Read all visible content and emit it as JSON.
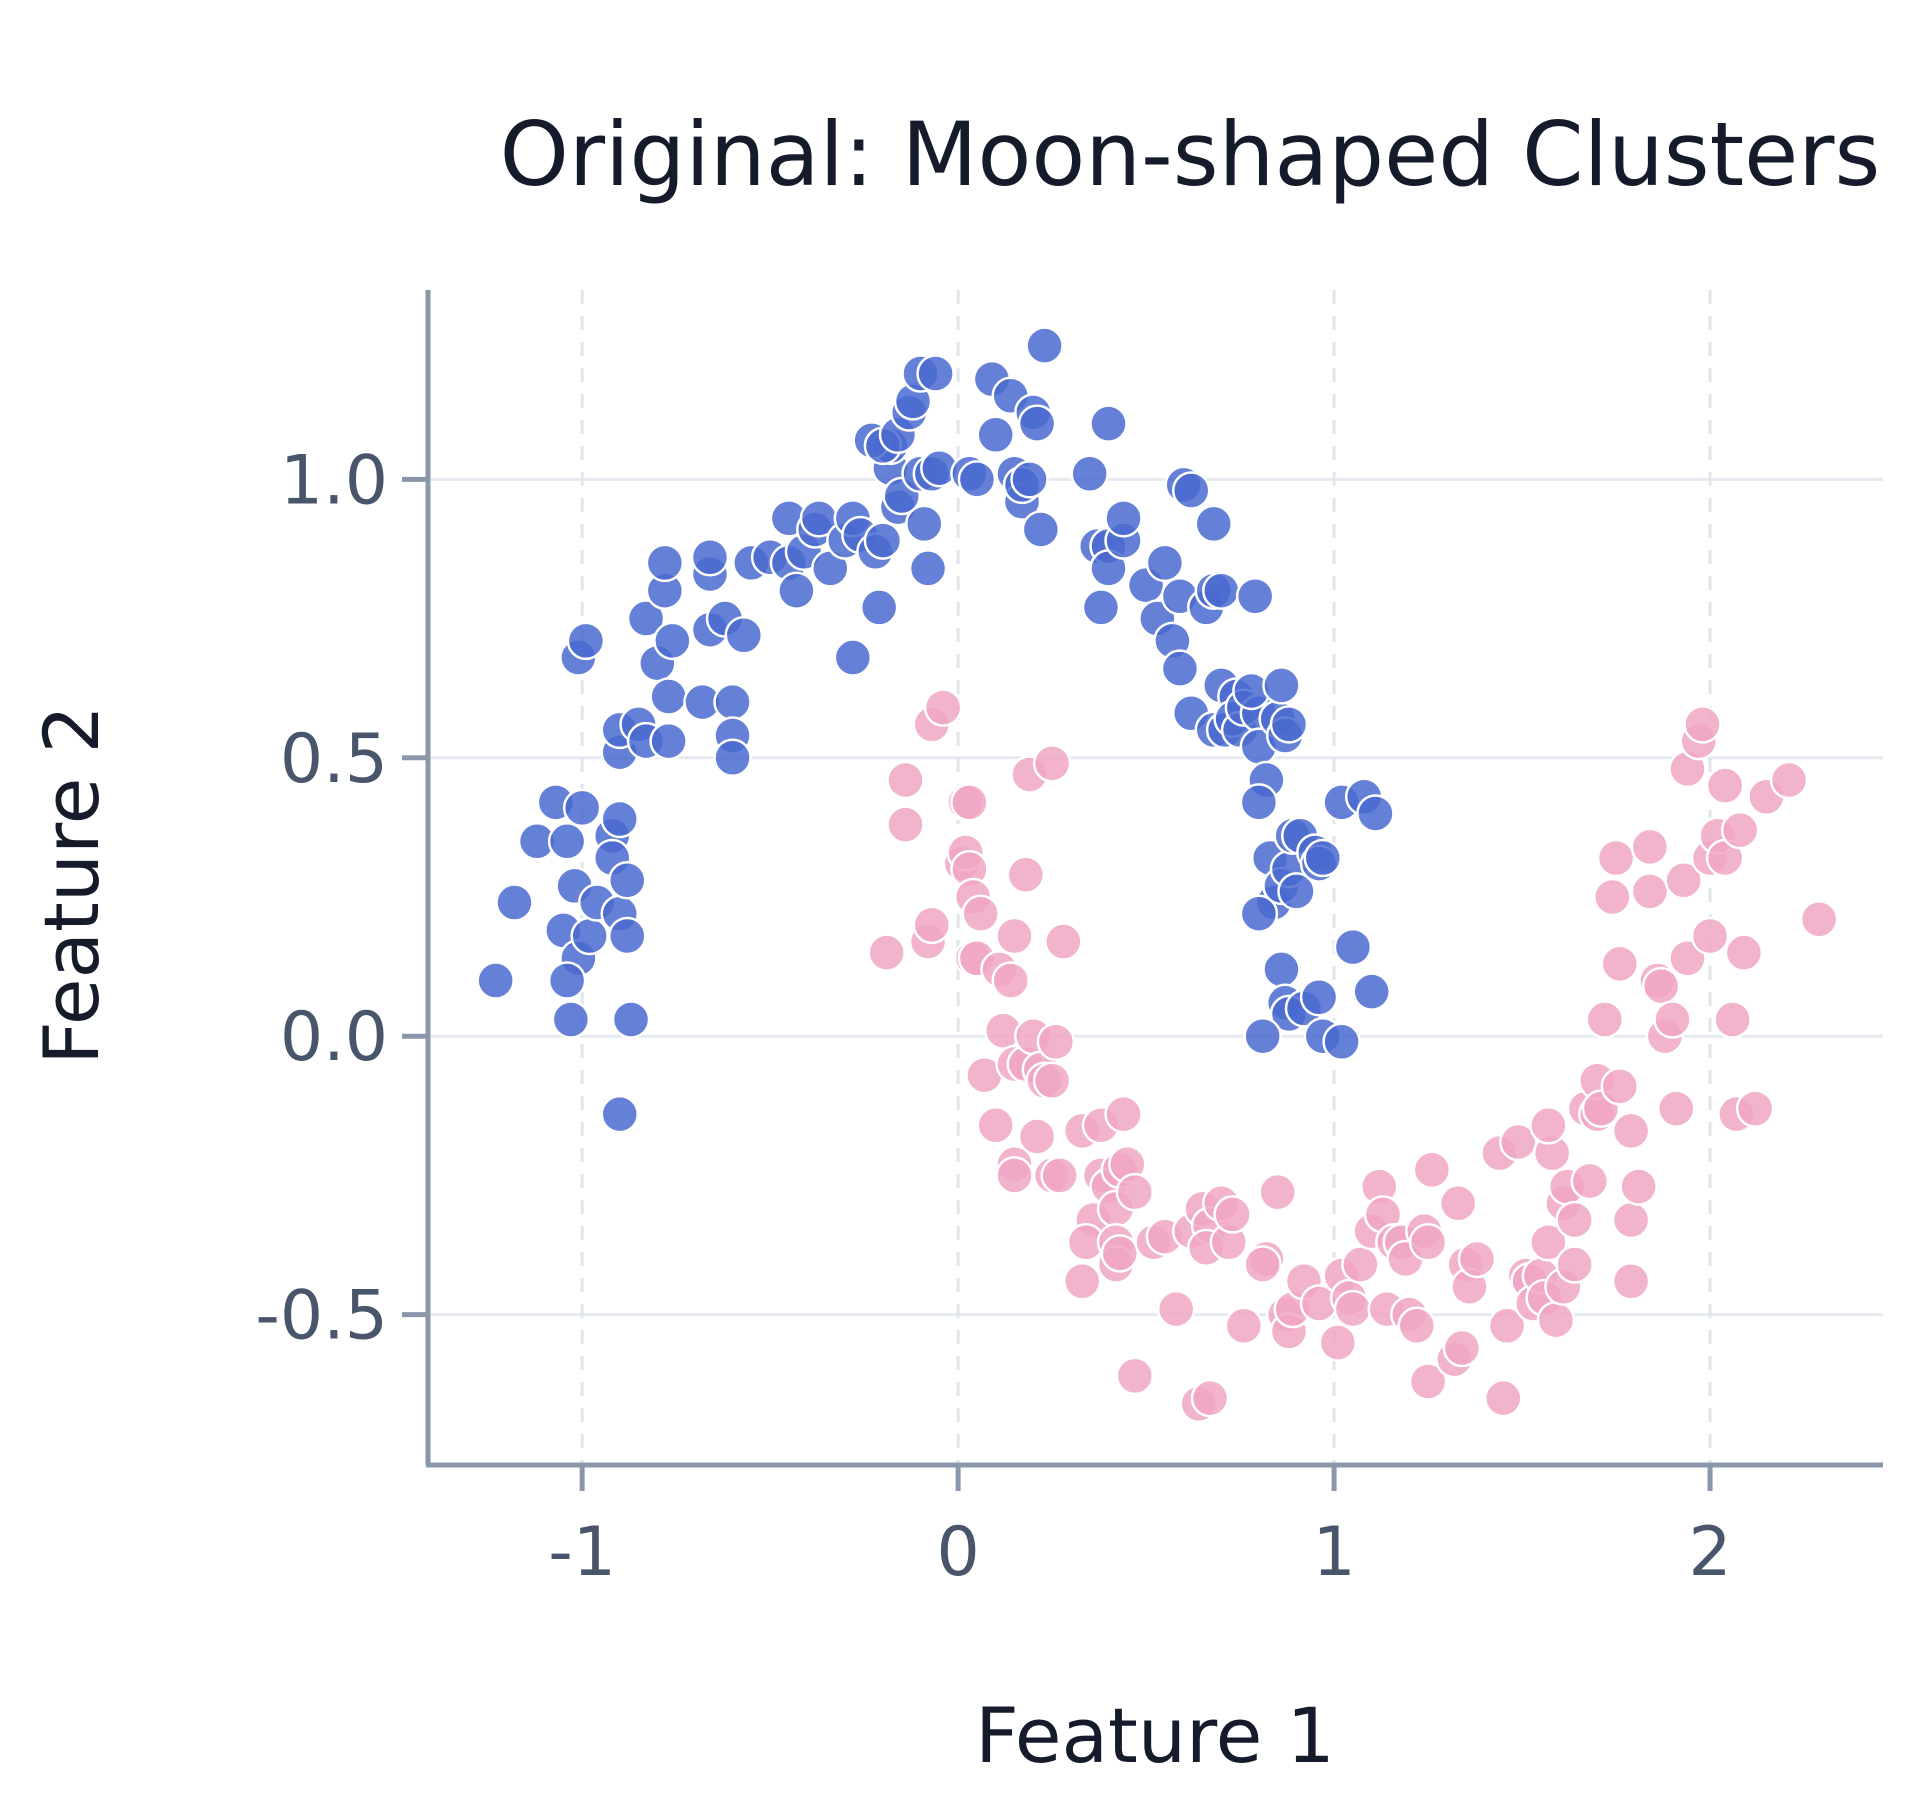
{
  "chart_data": {
    "type": "scatter",
    "title": "Original: Moon-shaped Clusters",
    "xlabel": "Feature 1",
    "ylabel": "Feature 2",
    "xlim": [
      -1.41,
      2.46
    ],
    "ylim": [
      -0.77,
      1.34
    ],
    "xticks": [
      -1,
      0,
      1,
      2
    ],
    "xtick_labels": [
      "-1",
      "0",
      "1",
      "2"
    ],
    "yticks": [
      -0.5,
      0.0,
      0.5,
      1.0
    ],
    "ytick_labels": [
      "-0.5",
      "0.0",
      "0.5",
      "1.0"
    ],
    "grid": true,
    "legend": "none",
    "series": [
      {
        "color": "#4a6ad0",
        "points": [
          [
            -1.23,
            0.1
          ],
          [
            -1.18,
            0.24
          ],
          [
            -1.12,
            0.35
          ],
          [
            -1.07,
            0.42
          ],
          [
            -1.04,
            0.35
          ],
          [
            -1.02,
            0.27
          ],
          [
            -1.05,
            0.19
          ],
          [
            -1.01,
            0.14
          ],
          [
            -0.98,
            0.18
          ],
          [
            -1.0,
            0.41
          ],
          [
            -1.04,
            0.1
          ],
          [
            -1.03,
            0.03
          ],
          [
            -0.96,
            0.24
          ],
          [
            -0.92,
            0.36
          ],
          [
            -0.92,
            0.32
          ],
          [
            -0.9,
            0.39
          ],
          [
            -0.9,
            0.22
          ],
          [
            -0.88,
            0.28
          ],
          [
            -0.88,
            0.18
          ],
          [
            -0.87,
            0.03
          ],
          [
            -0.9,
            -0.14
          ],
          [
            -1.01,
            0.68
          ],
          [
            -0.99,
            0.71
          ],
          [
            -0.9,
            0.51
          ],
          [
            -0.9,
            0.55
          ],
          [
            -0.85,
            0.56
          ],
          [
            -0.83,
            0.53
          ],
          [
            -0.77,
            0.53
          ],
          [
            -0.8,
            0.67
          ],
          [
            -0.77,
            0.61
          ],
          [
            -0.83,
            0.75
          ],
          [
            -0.76,
            0.71
          ],
          [
            -0.78,
            0.8
          ],
          [
            -0.78,
            0.85
          ],
          [
            -0.68,
            0.6
          ],
          [
            -0.66,
            0.73
          ],
          [
            -0.66,
            0.83
          ],
          [
            -0.66,
            0.86
          ],
          [
            -0.62,
            0.75
          ],
          [
            -0.57,
            0.72
          ],
          [
            -0.6,
            0.6
          ],
          [
            -0.6,
            0.54
          ],
          [
            -0.6,
            0.5
          ],
          [
            -0.55,
            0.85
          ],
          [
            -0.5,
            0.86
          ],
          [
            -0.45,
            0.85
          ],
          [
            -0.45,
            0.93
          ],
          [
            -0.43,
            0.8
          ],
          [
            -0.41,
            0.87
          ],
          [
            -0.38,
            0.91
          ],
          [
            -0.37,
            0.93
          ],
          [
            -0.34,
            0.84
          ],
          [
            -0.3,
            0.89
          ],
          [
            -0.28,
            0.93
          ],
          [
            -0.28,
            0.68
          ],
          [
            -0.26,
            0.9
          ],
          [
            -0.22,
            0.87
          ],
          [
            -0.21,
            0.77
          ],
          [
            -0.2,
            0.89
          ],
          [
            -0.18,
            1.02
          ],
          [
            -0.18,
            1.06
          ],
          [
            -0.16,
            0.95
          ],
          [
            -0.15,
            0.97
          ],
          [
            -0.23,
            1.07
          ],
          [
            -0.2,
            1.06
          ],
          [
            -0.16,
            1.08
          ],
          [
            -0.13,
            1.12
          ],
          [
            -0.12,
            1.14
          ],
          [
            -0.1,
            1.19
          ],
          [
            -0.06,
            1.19
          ],
          [
            -0.1,
            1.01
          ],
          [
            -0.07,
            1.01
          ],
          [
            -0.05,
            1.02
          ],
          [
            -0.09,
            0.92
          ],
          [
            -0.08,
            0.84
          ],
          [
            0.03,
            1.01
          ],
          [
            0.05,
            1.0
          ],
          [
            0.09,
            1.18
          ],
          [
            0.1,
            1.08
          ],
          [
            0.14,
            1.15
          ],
          [
            0.15,
            1.01
          ],
          [
            0.17,
            0.96
          ],
          [
            0.17,
            0.99
          ],
          [
            0.19,
            1.0
          ],
          [
            0.2,
            1.12
          ],
          [
            0.21,
            1.1
          ],
          [
            0.22,
            0.91
          ],
          [
            0.23,
            1.24
          ],
          [
            0.35,
            1.01
          ],
          [
            0.37,
            0.88
          ],
          [
            0.4,
            0.88
          ],
          [
            0.38,
            0.77
          ],
          [
            0.4,
            0.84
          ],
          [
            0.44,
            0.89
          ],
          [
            0.44,
            0.93
          ],
          [
            0.4,
            1.1
          ],
          [
            0.5,
            0.81
          ],
          [
            0.55,
            0.85
          ],
          [
            0.53,
            0.75
          ],
          [
            0.57,
            0.71
          ],
          [
            0.59,
            0.79
          ],
          [
            0.59,
            0.66
          ],
          [
            0.6,
            0.99
          ],
          [
            0.62,
            0.98
          ],
          [
            0.68,
            0.92
          ],
          [
            0.66,
            0.77
          ],
          [
            0.68,
            0.8
          ],
          [
            0.7,
            0.8
          ],
          [
            0.7,
            0.63
          ],
          [
            0.74,
            0.61
          ],
          [
            0.79,
            0.79
          ],
          [
            0.62,
            0.58
          ],
          [
            0.68,
            0.55
          ],
          [
            0.71,
            0.55
          ],
          [
            0.73,
            0.57
          ],
          [
            0.75,
            0.55
          ],
          [
            0.76,
            0.59
          ],
          [
            0.8,
            0.58
          ],
          [
            0.78,
            0.62
          ],
          [
            0.8,
            0.52
          ],
          [
            0.82,
            0.46
          ],
          [
            0.8,
            0.42
          ],
          [
            0.85,
            0.57
          ],
          [
            0.86,
            0.63
          ],
          [
            0.87,
            0.54
          ],
          [
            0.88,
            0.56
          ],
          [
            0.83,
            0.32
          ],
          [
            0.84,
            0.24
          ],
          [
            0.8,
            0.22
          ],
          [
            0.86,
            0.27
          ],
          [
            0.88,
            0.3
          ],
          [
            0.89,
            0.36
          ],
          [
            0.91,
            0.36
          ],
          [
            0.9,
            0.26
          ],
          [
            0.95,
            0.33
          ],
          [
            0.96,
            0.31
          ],
          [
            0.97,
            0.32
          ],
          [
            1.02,
            0.42
          ],
          [
            1.08,
            0.43
          ],
          [
            1.11,
            0.4
          ],
          [
            1.05,
            0.16
          ],
          [
            1.1,
            0.08
          ],
          [
            0.86,
            0.12
          ],
          [
            0.87,
            0.06
          ],
          [
            0.88,
            0.04
          ],
          [
            0.92,
            0.05
          ],
          [
            0.96,
            0.07
          ],
          [
            0.97,
            0.0
          ],
          [
            0.81,
            0.0
          ],
          [
            1.02,
            -0.01
          ]
        ]
      },
      {
        "color": "#f0a6c4",
        "points": [
          [
            -0.19,
            0.15
          ],
          [
            -0.14,
            0.38
          ],
          [
            -0.14,
            0.46
          ],
          [
            -0.08,
            0.17
          ],
          [
            -0.07,
            0.2
          ],
          [
            -0.07,
            0.56
          ],
          [
            -0.04,
            0.59
          ],
          [
            0.01,
            0.31
          ],
          [
            0.02,
            0.33
          ],
          [
            0.02,
            0.42
          ],
          [
            0.03,
            0.3
          ],
          [
            0.03,
            0.42
          ],
          [
            0.04,
            0.25
          ],
          [
            0.06,
            0.22
          ],
          [
            0.04,
            0.14
          ],
          [
            0.05,
            0.14
          ],
          [
            0.11,
            0.12
          ],
          [
            0.14,
            0.1
          ],
          [
            0.15,
            0.18
          ],
          [
            0.18,
            0.29
          ],
          [
            0.19,
            0.47
          ],
          [
            0.25,
            0.49
          ],
          [
            0.28,
            0.17
          ],
          [
            0.07,
            -0.07
          ],
          [
            0.1,
            -0.16
          ],
          [
            0.12,
            0.01
          ],
          [
            0.15,
            -0.05
          ],
          [
            0.18,
            -0.05
          ],
          [
            0.2,
            0.0
          ],
          [
            0.22,
            -0.06
          ],
          [
            0.23,
            -0.08
          ],
          [
            0.25,
            -0.08
          ],
          [
            0.26,
            -0.01
          ],
          [
            0.15,
            -0.23
          ],
          [
            0.15,
            -0.25
          ],
          [
            0.21,
            -0.18
          ],
          [
            0.25,
            -0.25
          ],
          [
            0.27,
            -0.25
          ],
          [
            0.33,
            -0.17
          ],
          [
            0.38,
            -0.16
          ],
          [
            0.36,
            -0.33
          ],
          [
            0.38,
            -0.25
          ],
          [
            0.4,
            -0.27
          ],
          [
            0.42,
            -0.31
          ],
          [
            0.43,
            -0.24
          ],
          [
            0.44,
            -0.14
          ],
          [
            0.45,
            -0.23
          ],
          [
            0.47,
            -0.28
          ],
          [
            0.34,
            -0.37
          ],
          [
            0.42,
            -0.37
          ],
          [
            0.42,
            -0.41
          ],
          [
            0.43,
            -0.39
          ],
          [
            0.33,
            -0.44
          ],
          [
            0.47,
            -0.61
          ],
          [
            0.52,
            -0.37
          ],
          [
            0.55,
            -0.36
          ],
          [
            0.58,
            -0.49
          ],
          [
            0.62,
            -0.35
          ],
          [
            0.65,
            -0.31
          ],
          [
            0.67,
            -0.34
          ],
          [
            0.66,
            -0.38
          ],
          [
            0.7,
            -0.3
          ],
          [
            0.72,
            -0.37
          ],
          [
            0.73,
            -0.32
          ],
          [
            0.76,
            -0.52
          ],
          [
            0.82,
            -0.4
          ],
          [
            0.85,
            -0.28
          ],
          [
            0.64,
            -0.66
          ],
          [
            0.67,
            -0.65
          ],
          [
            0.81,
            -0.41
          ],
          [
            0.87,
            -0.5
          ],
          [
            0.88,
            -0.53
          ],
          [
            0.89,
            -0.49
          ],
          [
            0.92,
            -0.44
          ],
          [
            0.96,
            -0.48
          ],
          [
            1.01,
            -0.55
          ],
          [
            1.02,
            -0.43
          ],
          [
            1.04,
            -0.47
          ],
          [
            1.05,
            -0.49
          ],
          [
            1.07,
            -0.41
          ],
          [
            1.1,
            -0.35
          ],
          [
            1.12,
            -0.27
          ],
          [
            1.13,
            -0.32
          ],
          [
            1.14,
            -0.49
          ],
          [
            1.16,
            -0.37
          ],
          [
            1.18,
            -0.37
          ],
          [
            1.19,
            -0.4
          ],
          [
            1.2,
            -0.5
          ],
          [
            1.22,
            -0.52
          ],
          [
            1.24,
            -0.35
          ],
          [
            1.25,
            -0.37
          ],
          [
            1.26,
            -0.24
          ],
          [
            1.25,
            -0.62
          ],
          [
            1.32,
            -0.58
          ],
          [
            1.34,
            -0.56
          ],
          [
            1.33,
            -0.3
          ],
          [
            1.35,
            -0.41
          ],
          [
            1.36,
            -0.45
          ],
          [
            1.38,
            -0.4
          ],
          [
            1.44,
            -0.21
          ],
          [
            1.45,
            -0.65
          ],
          [
            1.46,
            -0.52
          ],
          [
            1.49,
            -0.19
          ],
          [
            1.51,
            -0.43
          ],
          [
            1.52,
            -0.44
          ],
          [
            1.53,
            -0.48
          ],
          [
            1.55,
            -0.43
          ],
          [
            1.56,
            -0.47
          ],
          [
            1.57,
            -0.37
          ],
          [
            1.58,
            -0.21
          ],
          [
            1.57,
            -0.16
          ],
          [
            1.61,
            -0.3
          ],
          [
            1.62,
            -0.27
          ],
          [
            1.59,
            -0.51
          ],
          [
            1.61,
            -0.45
          ],
          [
            1.64,
            -0.33
          ],
          [
            1.64,
            -0.41
          ],
          [
            1.68,
            -0.26
          ],
          [
            1.67,
            -0.13
          ],
          [
            1.7,
            -0.14
          ],
          [
            1.7,
            -0.08
          ],
          [
            1.71,
            -0.13
          ],
          [
            1.72,
            0.03
          ],
          [
            1.74,
            0.25
          ],
          [
            1.75,
            0.32
          ],
          [
            1.76,
            0.13
          ],
          [
            1.76,
            -0.09
          ],
          [
            1.79,
            -0.17
          ],
          [
            1.79,
            -0.33
          ],
          [
            1.79,
            -0.44
          ],
          [
            1.81,
            -0.27
          ],
          [
            1.84,
            0.26
          ],
          [
            1.84,
            0.34
          ],
          [
            1.86,
            0.1
          ],
          [
            1.87,
            0.09
          ],
          [
            1.88,
            0.0
          ],
          [
            1.9,
            0.03
          ],
          [
            1.91,
            -0.13
          ],
          [
            1.93,
            0.28
          ],
          [
            1.94,
            0.48
          ],
          [
            1.94,
            0.14
          ],
          [
            1.97,
            0.53
          ],
          [
            1.98,
            0.56
          ],
          [
            2.0,
            0.32
          ],
          [
            2.0,
            0.18
          ],
          [
            2.02,
            0.36
          ],
          [
            2.04,
            0.45
          ],
          [
            2.04,
            0.32
          ],
          [
            2.06,
            0.03
          ],
          [
            2.07,
            -0.14
          ],
          [
            2.08,
            0.37
          ],
          [
            2.09,
            0.15
          ],
          [
            2.12,
            -0.13
          ],
          [
            2.15,
            0.43
          ],
          [
            2.21,
            0.46
          ],
          [
            2.29,
            0.21
          ]
        ]
      }
    ]
  }
}
